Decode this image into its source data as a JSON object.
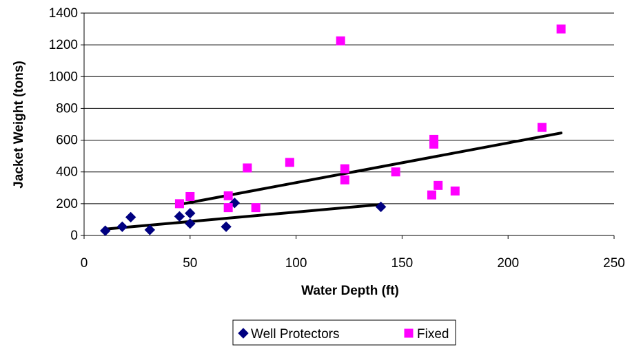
{
  "chart_data": {
    "type": "scatter",
    "xlabel": "Water Depth (ft)",
    "ylabel": "Jacket Weight (tons)",
    "xlim": [
      0,
      250
    ],
    "ylim": [
      0,
      1400
    ],
    "xticks": [
      0,
      50,
      100,
      150,
      200,
      250
    ],
    "yticks": [
      0,
      200,
      400,
      600,
      800,
      1000,
      1200,
      1400
    ],
    "grid": "horizontal",
    "legend_position": "bottom",
    "series": [
      {
        "name": "Well Protectors",
        "marker": "diamond",
        "color": "#000080",
        "points": [
          [
            10,
            30
          ],
          [
            18,
            55
          ],
          [
            22,
            115
          ],
          [
            31,
            35
          ],
          [
            45,
            120
          ],
          [
            50,
            140
          ],
          [
            50,
            75
          ],
          [
            67,
            55
          ],
          [
            71,
            205
          ],
          [
            140,
            180
          ]
        ],
        "trendline": [
          [
            10,
            40
          ],
          [
            140,
            195
          ]
        ]
      },
      {
        "name": "Fixed",
        "marker": "square",
        "color": "#FF00FF",
        "points": [
          [
            45,
            200
          ],
          [
            50,
            245
          ],
          [
            68,
            175
          ],
          [
            68,
            250
          ],
          [
            77,
            425
          ],
          [
            81,
            175
          ],
          [
            97,
            460
          ],
          [
            121,
            1225
          ],
          [
            123,
            420
          ],
          [
            123,
            350
          ],
          [
            147,
            400
          ],
          [
            164,
            255
          ],
          [
            165,
            575
          ],
          [
            165,
            605
          ],
          [
            167,
            315
          ],
          [
            175,
            280
          ],
          [
            216,
            680
          ],
          [
            225,
            1300
          ]
        ],
        "trendline": [
          [
            45,
            195
          ],
          [
            225,
            645
          ]
        ]
      }
    ],
    "trendline_color": "#000000"
  }
}
